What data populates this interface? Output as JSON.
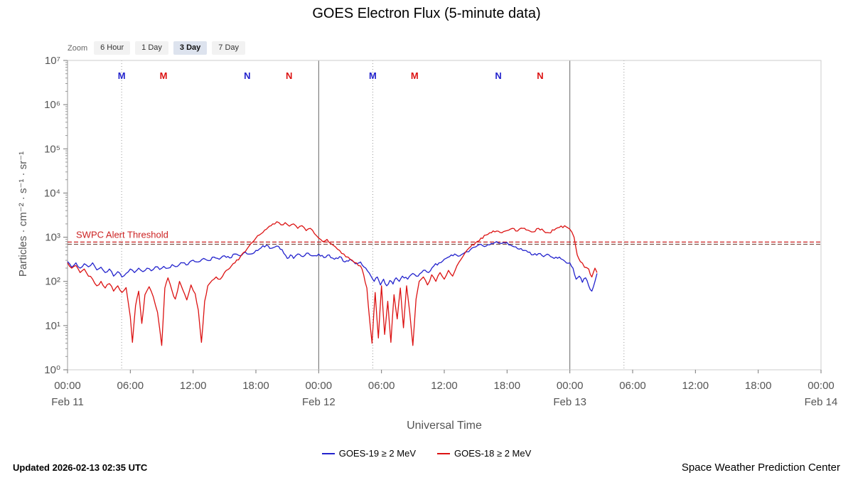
{
  "title": "GOES Electron Flux (5-minute data)",
  "zoom": {
    "label": "Zoom",
    "buttons": [
      {
        "label": "6 Hour",
        "active": false
      },
      {
        "label": "1 Day",
        "active": false
      },
      {
        "label": "3 Day",
        "active": true
      },
      {
        "label": "7 Day",
        "active": false
      }
    ]
  },
  "legend": {
    "items": [
      {
        "label": "GOES-19 ≥ 2 MeV",
        "color": "#2323cd"
      },
      {
        "label": "GOES-18 ≥ 2 MeV",
        "color": "#dc1212"
      }
    ]
  },
  "footer": {
    "updated": "Updated 2026-02-13 02:35 UTC",
    "source": "Space Weather Prediction Center"
  },
  "chart_data": {
    "type": "line",
    "title": "GOES Electron Flux (5-minute data)",
    "xlabel": "Universal Time",
    "ylabel": "Particles · cm⁻² · s⁻¹ · sr⁻¹",
    "y_scale": "log10",
    "y_ticks": [
      "10⁰",
      "10¹",
      "10²",
      "10³",
      "10⁴",
      "10⁵",
      "10⁶",
      "10⁷"
    ],
    "y_log_range": [
      0,
      7
    ],
    "x_range_hours": [
      0,
      72
    ],
    "x_time_ticks": [
      {
        "t": 0,
        "label": "00:00"
      },
      {
        "t": 6,
        "label": "06:00"
      },
      {
        "t": 12,
        "label": "12:00"
      },
      {
        "t": 18,
        "label": "18:00"
      },
      {
        "t": 24,
        "label": "00:00"
      },
      {
        "t": 30,
        "label": "06:00"
      },
      {
        "t": 36,
        "label": "12:00"
      },
      {
        "t": 42,
        "label": "18:00"
      },
      {
        "t": 48,
        "label": "00:00"
      },
      {
        "t": 54,
        "label": "06:00"
      },
      {
        "t": 60,
        "label": "12:00"
      },
      {
        "t": 66,
        "label": "18:00"
      },
      {
        "t": 72,
        "label": "00:00"
      }
    ],
    "x_date_ticks": [
      {
        "t": 0,
        "label": "Feb 11"
      },
      {
        "t": 24,
        "label": "Feb 12"
      },
      {
        "t": 48,
        "label": "Feb 13"
      },
      {
        "t": 72,
        "label": "Feb 14"
      }
    ],
    "day_boundaries": [
      24,
      48
    ],
    "dotted_lines": [
      5.17,
      29.17,
      53.17
    ],
    "satellite_markers": [
      {
        "t": 5.17,
        "label": "M",
        "color": "#2323cd"
      },
      {
        "t": 9.17,
        "label": "M",
        "color": "#dc1212"
      },
      {
        "t": 17.17,
        "label": "N",
        "color": "#2323cd"
      },
      {
        "t": 21.17,
        "label": "N",
        "color": "#dc1212"
      },
      {
        "t": 29.17,
        "label": "M",
        "color": "#2323cd"
      },
      {
        "t": 33.17,
        "label": "M",
        "color": "#dc1212"
      },
      {
        "t": 41.17,
        "label": "N",
        "color": "#2323cd"
      },
      {
        "t": 45.17,
        "label": "N",
        "color": "#dc1212"
      }
    ],
    "threshold": {
      "label": "SWPC Alert Threshold",
      "lines": [
        {
          "log10_value": 2.89,
          "color": "#cc2222"
        },
        {
          "log10_value": 2.84,
          "color": "#7a5044"
        }
      ]
    },
    "series": [
      {
        "name": "GOES-19",
        "label": "GOES-19 ≥ 2 MeV",
        "color": "#2323cd",
        "points_log10": [
          [
            0,
            2.45
          ],
          [
            0.4,
            2.32
          ],
          [
            0.8,
            2.42
          ],
          [
            1.2,
            2.3
          ],
          [
            1.6,
            2.4
          ],
          [
            2,
            2.33
          ],
          [
            2.4,
            2.42
          ],
          [
            2.8,
            2.26
          ],
          [
            3.2,
            2.32
          ],
          [
            3.6,
            2.2
          ],
          [
            4,
            2.28
          ],
          [
            4.4,
            2.12
          ],
          [
            4.8,
            2.22
          ],
          [
            5.2,
            2.1
          ],
          [
            5.6,
            2.18
          ],
          [
            6,
            2.28
          ],
          [
            6.4,
            2.2
          ],
          [
            6.8,
            2.3
          ],
          [
            7.2,
            2.22
          ],
          [
            7.6,
            2.3
          ],
          [
            8,
            2.24
          ],
          [
            8.4,
            2.33
          ],
          [
            8.8,
            2.27
          ],
          [
            9.2,
            2.34
          ],
          [
            9.6,
            2.3
          ],
          [
            10,
            2.38
          ],
          [
            10.5,
            2.34
          ],
          [
            11,
            2.42
          ],
          [
            11.5,
            2.38
          ],
          [
            12,
            2.48
          ],
          [
            12.5,
            2.44
          ],
          [
            13,
            2.52
          ],
          [
            13.5,
            2.47
          ],
          [
            14,
            2.55
          ],
          [
            14.5,
            2.5
          ],
          [
            15,
            2.58
          ],
          [
            15.5,
            2.53
          ],
          [
            16,
            2.62
          ],
          [
            16.5,
            2.58
          ],
          [
            17,
            2.66
          ],
          [
            17.5,
            2.62
          ],
          [
            18,
            2.7
          ],
          [
            18.5,
            2.76
          ],
          [
            19,
            2.82
          ],
          [
            19.5,
            2.75
          ],
          [
            20,
            2.8
          ],
          [
            20.5,
            2.72
          ],
          [
            21,
            2.52
          ],
          [
            21.3,
            2.6
          ],
          [
            21.6,
            2.52
          ],
          [
            22,
            2.62
          ],
          [
            22.5,
            2.56
          ],
          [
            23,
            2.64
          ],
          [
            23.5,
            2.58
          ],
          [
            24,
            2.62
          ],
          [
            24.5,
            2.54
          ],
          [
            25,
            2.6
          ],
          [
            25.5,
            2.5
          ],
          [
            26,
            2.56
          ],
          [
            26.5,
            2.44
          ],
          [
            27,
            2.5
          ],
          [
            27.5,
            2.4
          ],
          [
            28,
            2.44
          ],
          [
            28.5,
            2.3
          ],
          [
            29,
            2.12
          ],
          [
            29.3,
            2.0
          ],
          [
            29.6,
            2.1
          ],
          [
            29.9,
            1.92
          ],
          [
            30.2,
            2.05
          ],
          [
            30.5,
            1.9
          ],
          [
            30.8,
            2.02
          ],
          [
            31.1,
            1.94
          ],
          [
            31.4,
            2.08
          ],
          [
            31.7,
            2.0
          ],
          [
            32,
            2.12
          ],
          [
            32.5,
            2.05
          ],
          [
            33,
            2.18
          ],
          [
            33.5,
            2.12
          ],
          [
            34,
            2.25
          ],
          [
            34.5,
            2.2
          ],
          [
            35,
            2.35
          ],
          [
            35.5,
            2.42
          ],
          [
            36,
            2.5
          ],
          [
            36.5,
            2.56
          ],
          [
            37,
            2.62
          ],
          [
            37.5,
            2.58
          ],
          [
            38,
            2.66
          ],
          [
            38.5,
            2.72
          ],
          [
            39,
            2.78
          ],
          [
            39.5,
            2.84
          ],
          [
            40,
            2.8
          ],
          [
            40.5,
            2.86
          ],
          [
            41,
            2.9
          ],
          [
            41.5,
            2.86
          ],
          [
            42,
            2.88
          ],
          [
            42.5,
            2.8
          ],
          [
            43,
            2.74
          ],
          [
            43.5,
            2.7
          ],
          [
            44,
            2.66
          ],
          [
            44.5,
            2.6
          ],
          [
            45,
            2.63
          ],
          [
            45.5,
            2.56
          ],
          [
            46,
            2.6
          ],
          [
            46.5,
            2.52
          ],
          [
            47,
            2.55
          ],
          [
            47.5,
            2.46
          ],
          [
            48,
            2.42
          ],
          [
            48.3,
            2.3
          ],
          [
            48.6,
            2.05
          ],
          [
            48.9,
            2.12
          ],
          [
            49.2,
            1.98
          ],
          [
            49.5,
            2.08
          ],
          [
            49.8,
            1.9
          ],
          [
            50.1,
            1.78
          ],
          [
            50.4,
            2.0
          ],
          [
            50.6,
            2.18
          ]
        ]
      },
      {
        "name": "GOES-18",
        "label": "GOES-18 ≥ 2 MeV",
        "color": "#dc1212",
        "points_log10": [
          [
            0,
            2.42
          ],
          [
            0.4,
            2.3
          ],
          [
            0.8,
            2.36
          ],
          [
            1.2,
            2.2
          ],
          [
            1.6,
            2.28
          ],
          [
            2,
            2.12
          ],
          [
            2.4,
            2.05
          ],
          [
            2.8,
            1.9
          ],
          [
            3.2,
            2.0
          ],
          [
            3.6,
            1.85
          ],
          [
            4,
            1.95
          ],
          [
            4.4,
            1.78
          ],
          [
            4.8,
            1.9
          ],
          [
            5.2,
            1.75
          ],
          [
            5.6,
            1.86
          ],
          [
            6,
            1.2
          ],
          [
            6.2,
            0.62
          ],
          [
            6.5,
            1.45
          ],
          [
            6.8,
            1.78
          ],
          [
            7.1,
            1.05
          ],
          [
            7.4,
            1.7
          ],
          [
            7.8,
            1.88
          ],
          [
            8.2,
            1.65
          ],
          [
            8.6,
            1.3
          ],
          [
            9,
            0.55
          ],
          [
            9.3,
            1.85
          ],
          [
            9.6,
            2.08
          ],
          [
            10,
            1.78
          ],
          [
            10.3,
            1.6
          ],
          [
            10.7,
            2.0
          ],
          [
            11,
            1.82
          ],
          [
            11.4,
            1.58
          ],
          [
            11.8,
            1.92
          ],
          [
            12.2,
            1.72
          ],
          [
            12.5,
            1.35
          ],
          [
            12.8,
            0.62
          ],
          [
            13.1,
            1.55
          ],
          [
            13.4,
            1.9
          ],
          [
            13.8,
            2.02
          ],
          [
            14.2,
            2.1
          ],
          [
            14.6,
            2.05
          ],
          [
            15,
            2.2
          ],
          [
            15.5,
            2.3
          ],
          [
            16,
            2.42
          ],
          [
            16.5,
            2.55
          ],
          [
            17,
            2.68
          ],
          [
            17.5,
            2.85
          ],
          [
            18,
            2.98
          ],
          [
            18.5,
            3.08
          ],
          [
            19,
            3.18
          ],
          [
            19.3,
            3.25
          ],
          [
            19.6,
            3.3
          ],
          [
            20,
            3.35
          ],
          [
            20.4,
            3.28
          ],
          [
            20.8,
            3.33
          ],
          [
            21.2,
            3.25
          ],
          [
            21.6,
            3.3
          ],
          [
            22,
            3.2
          ],
          [
            22.4,
            3.26
          ],
          [
            22.8,
            3.15
          ],
          [
            23.2,
            3.2
          ],
          [
            23.6,
            3.08
          ],
          [
            24,
            2.98
          ],
          [
            24.4,
            2.9
          ],
          [
            24.8,
            2.95
          ],
          [
            25.2,
            2.85
          ],
          [
            25.6,
            2.78
          ],
          [
            26,
            2.7
          ],
          [
            26.4,
            2.62
          ],
          [
            26.8,
            2.55
          ],
          [
            27.2,
            2.48
          ],
          [
            27.6,
            2.42
          ],
          [
            28,
            2.35
          ],
          [
            28.3,
            2.15
          ],
          [
            28.6,
            1.85
          ],
          [
            28.9,
            1.05
          ],
          [
            29.1,
            0.6
          ],
          [
            29.4,
            1.75
          ],
          [
            29.7,
            0.72
          ],
          [
            30,
            1.9
          ],
          [
            30.3,
            0.8
          ],
          [
            30.6,
            1.55
          ],
          [
            30.9,
            0.62
          ],
          [
            31.2,
            1.7
          ],
          [
            31.5,
            1.15
          ],
          [
            31.8,
            1.85
          ],
          [
            32.1,
            0.95
          ],
          [
            32.4,
            1.9
          ],
          [
            32.7,
            1.3
          ],
          [
            33,
            0.55
          ],
          [
            33.3,
            1.6
          ],
          [
            33.6,
            2.0
          ],
          [
            34,
            2.1
          ],
          [
            34.4,
            1.92
          ],
          [
            34.8,
            2.15
          ],
          [
            35.2,
            2.0
          ],
          [
            35.6,
            2.2
          ],
          [
            36,
            2.05
          ],
          [
            36.4,
            2.25
          ],
          [
            36.8,
            2.12
          ],
          [
            37.2,
            2.35
          ],
          [
            37.6,
            2.5
          ],
          [
            38,
            2.65
          ],
          [
            38.5,
            2.78
          ],
          [
            39,
            2.88
          ],
          [
            39.5,
            2.98
          ],
          [
            40,
            3.05
          ],
          [
            40.5,
            3.1
          ],
          [
            41,
            3.14
          ],
          [
            41.5,
            3.1
          ],
          [
            42,
            3.15
          ],
          [
            42.5,
            3.2
          ],
          [
            43,
            3.14
          ],
          [
            43.5,
            3.2
          ],
          [
            44,
            3.16
          ],
          [
            44.5,
            3.12
          ],
          [
            45,
            3.2
          ],
          [
            45.5,
            3.14
          ],
          [
            46,
            3.1
          ],
          [
            46.5,
            3.16
          ],
          [
            47,
            3.22
          ],
          [
            47.5,
            3.26
          ],
          [
            48,
            3.18
          ],
          [
            48.4,
            3.0
          ],
          [
            48.7,
            2.6
          ],
          [
            49,
            2.45
          ],
          [
            49.4,
            2.32
          ],
          [
            49.8,
            2.28
          ],
          [
            50.1,
            2.1
          ],
          [
            50.4,
            2.3
          ],
          [
            50.6,
            2.2
          ]
        ]
      }
    ]
  }
}
